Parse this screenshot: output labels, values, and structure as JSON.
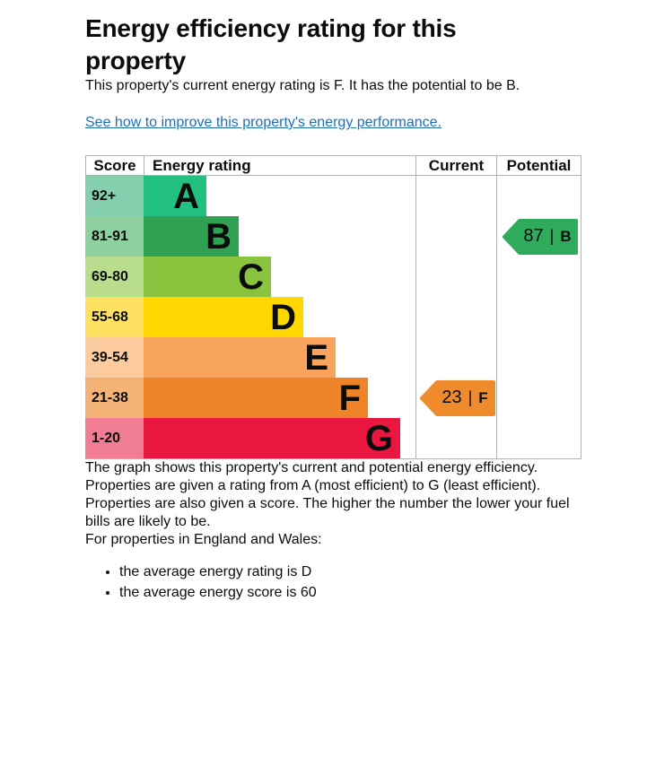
{
  "header": {
    "title": "Energy efficiency rating for this property"
  },
  "intro": {
    "text": "This property's current energy rating is F. It has the potential to be B.",
    "link_text": "See how to improve this property's energy performance."
  },
  "chart_data": {
    "type": "bar",
    "title": "Energy efficiency rating",
    "columns": {
      "score": "Score",
      "rating": "Energy rating",
      "current": "Current",
      "potential": "Potential"
    },
    "bands": [
      {
        "score": "92+",
        "letter": "A",
        "bar_color": "#23c17f",
        "cell_color": "#86cfae"
      },
      {
        "score": "81-91",
        "letter": "B",
        "bar_color": "#2ea152",
        "cell_color": "#8ed0a0"
      },
      {
        "score": "69-80",
        "letter": "C",
        "bar_color": "#8ac43f",
        "cell_color": "#b8dd8d"
      },
      {
        "score": "55-68",
        "letter": "D",
        "bar_color": "#fed800",
        "cell_color": "#ffe161"
      },
      {
        "score": "39-54",
        "letter": "E",
        "bar_color": "#f9a45d",
        "cell_color": "#fbcb9e"
      },
      {
        "score": "21-38",
        "letter": "F",
        "bar_color": "#ee8329",
        "cell_color": "#f4b376"
      },
      {
        "score": "1-20",
        "letter": "G",
        "bar_color": "#e9173f",
        "cell_color": "#f07d93"
      }
    ],
    "divider": "|",
    "current": {
      "value": "23",
      "band": "F",
      "color": "#ef8b2d"
    },
    "potential": {
      "value": "87",
      "band": "B",
      "color": "#2eac5b"
    }
  },
  "body": {
    "paragraphs": [
      "The graph shows this property's current and potential energy efficiency.",
      "Properties are given a rating from A (most efficient) to G (least efficient).",
      "Properties are also given a score. The higher the number the lower your fuel bills are likely to be.",
      "For properties in England and Wales:"
    ],
    "bullets": [
      "the average energy rating is D",
      "the average energy score is 60"
    ]
  },
  "colors": {
    "text": "#0b0c0c",
    "link": "#1d70b8",
    "border": "#b1b4b6"
  }
}
